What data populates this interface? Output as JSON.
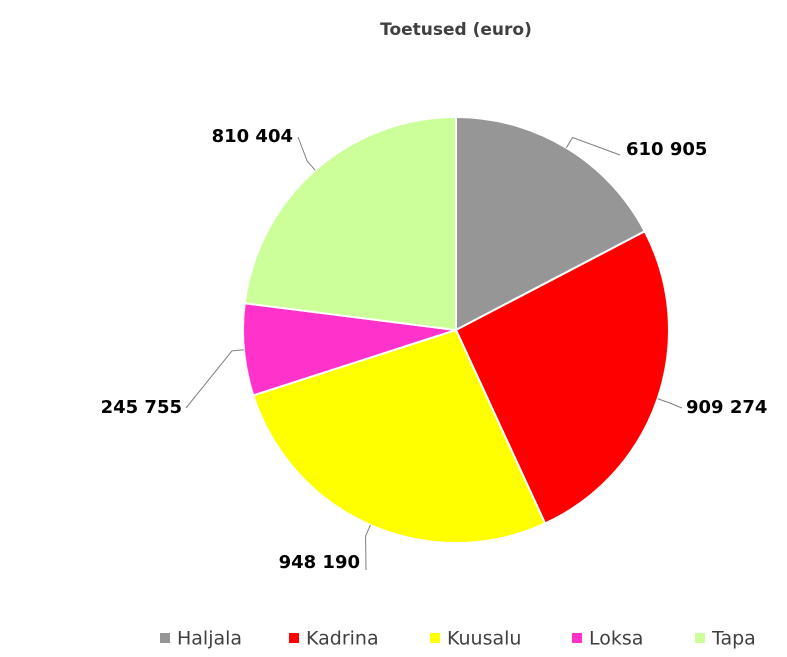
{
  "chart_data": {
    "type": "pie",
    "title": "Toetused (euro)",
    "categories": [
      "Haljala",
      "Kadrina",
      "Kuusalu",
      "Loksa",
      "Tapa"
    ],
    "values": [
      610905,
      909274,
      948190,
      245755,
      810404
    ],
    "value_labels": [
      "610 905",
      "909 274",
      "948 190",
      "245 755",
      "810 404"
    ],
    "colors": [
      "#969696",
      "#ff0000",
      "#ffff00",
      "#ff33cc",
      "#ccff99"
    ],
    "legend": "bottom"
  }
}
